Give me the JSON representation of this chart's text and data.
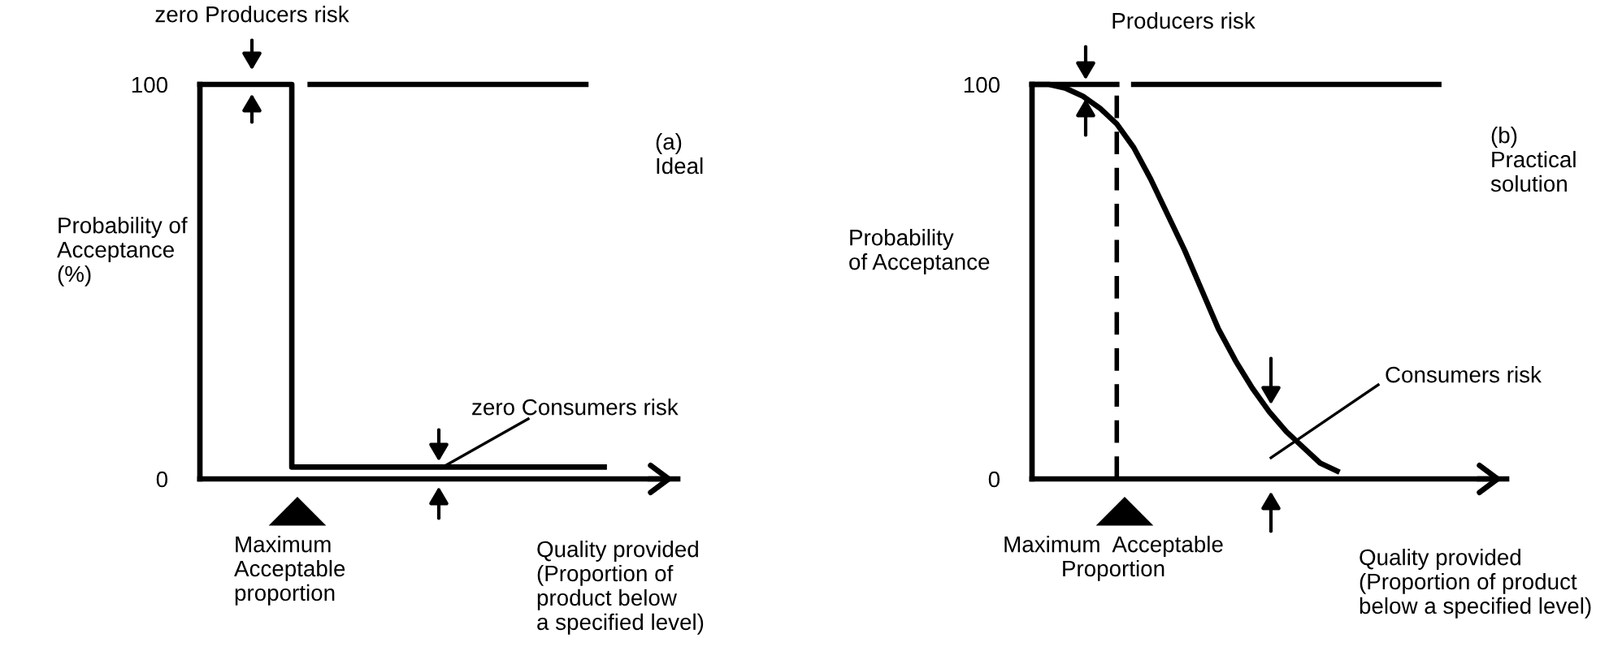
{
  "chart_data": [
    {
      "type": "line",
      "ylabel": "Probability of\nAcceptance\n(%)",
      "xlabel": "Quality provided\n(Proportion of\nproduct below\na specified level)",
      "categories": [
        null,
        null,
        null,
        null,
        null,
        null,
        null,
        null,
        null,
        null,
        null,
        null,
        null,
        null,
        null,
        null,
        null,
        null,
        null,
        null,
        null,
        null,
        null
      ],
      "series": [
        {
          "type": "step",
          "color": "#000000",
          "values": [
            100,
            100,
            100,
            100,
            100,
            3,
            3,
            3,
            3,
            3,
            3,
            3,
            3,
            3,
            3,
            3,
            3,
            3,
            3,
            3,
            3,
            3,
            3
          ]
        },
        {
          "color": "#000000",
          "values": [
            null,
            null,
            null,
            null,
            null,
            null,
            100,
            100,
            100,
            100,
            100,
            100,
            100,
            100,
            100,
            100,
            100,
            100,
            100,
            100,
            100,
            100,
            null
          ]
        }
      ],
      "ylim": [
        0,
        100
      ],
      "yticks": [
        0,
        100
      ],
      "annotations": [
        "zero Producers risk",
        "(a)\nIdeal",
        "Maximum\nAcceptable\nproportion",
        "zero Consumers risk"
      ]
    },
    {
      "type": "line",
      "ylabel": "Probability\nof Acceptance",
      "xlabel": "Quality provided\n(Proportion of product\nbelow a specified level)",
      "categories": [
        null,
        null,
        null,
        null,
        null,
        null,
        null,
        null,
        null,
        null,
        null,
        null,
        null,
        null,
        null,
        null,
        null,
        null,
        null,
        null,
        null,
        null,
        null,
        null,
        null
      ],
      "series": [
        {
          "color": "#000000",
          "values": [
            100,
            100,
            99,
            97,
            94,
            90,
            84,
            76,
            67,
            58,
            48,
            38,
            30,
            23,
            17,
            12,
            8,
            4,
            2,
            null,
            null,
            null,
            null,
            null,
            null
          ]
        },
        {
          "color": "#000000",
          "values": [
            100,
            100,
            100,
            100,
            100,
            100,
            null,
            null,
            null,
            null,
            null,
            null,
            null,
            null,
            null,
            null,
            null,
            null,
            null,
            null,
            null,
            null,
            null,
            null,
            null
          ]
        },
        {
          "color": "#000000",
          "values": [
            null,
            null,
            null,
            null,
            null,
            null,
            100,
            100,
            100,
            100,
            100,
            100,
            100,
            100,
            100,
            100,
            100,
            100,
            100,
            100,
            100,
            100,
            100,
            100,
            100
          ]
        }
      ],
      "ylim": [
        0,
        100
      ],
      "yticks": [
        0,
        100
      ],
      "annotations": [
        "Producers risk",
        "(b)\nPractical\nsolution",
        "Maximum  Acceptable\nProportion",
        "Consumers risk"
      ]
    }
  ]
}
